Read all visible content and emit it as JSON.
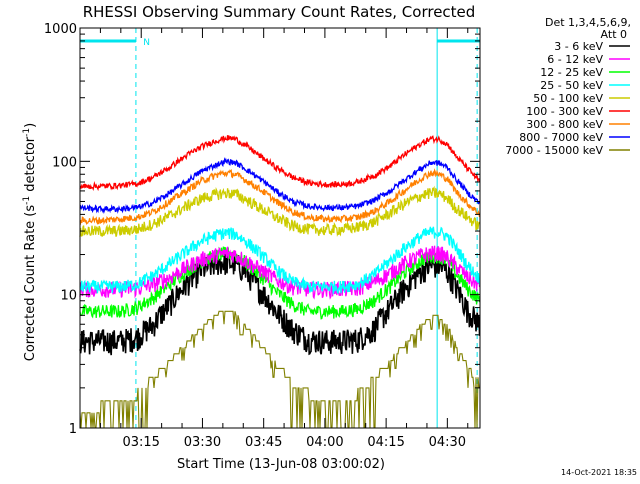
{
  "chart_data": {
    "type": "line",
    "title": "RHESSI Observing Summary Count Rates, Corrected",
    "xlabel": "Start Time (13-Jun-08 03:00:02)",
    "ylabel_main": "Corrected Count Rate (s",
    "ylabel_sup1": "-1",
    "ylabel_mid": " detector",
    "ylabel_sup2": "-1",
    "ylabel_end": ")",
    "yscale": "log",
    "xlim": [
      0,
      98
    ],
    "ylim": [
      1,
      1000
    ],
    "x_unit": "minutes after 03:00",
    "x_ticks": [
      {
        "x": 15,
        "label": "03:15"
      },
      {
        "x": 30,
        "label": "03:30"
      },
      {
        "x": 45,
        "label": "03:45"
      },
      {
        "x": 60,
        "label": "04:00"
      },
      {
        "x": 75,
        "label": "04:15"
      },
      {
        "x": 90,
        "label": "04:30"
      }
    ],
    "y_ticks": [
      {
        "y": 1,
        "label": "1"
      },
      {
        "y": 10,
        "label": "10"
      },
      {
        "y": 100,
        "label": "100"
      },
      {
        "y": 1000,
        "label": "1000"
      }
    ],
    "legend_header": [
      "Det 1,3,4,5,6,9,",
      "Att 0"
    ],
    "legend_position": "right",
    "timestamp": "14-Oct-2021 18:35",
    "annotations": [
      {
        "label": "N",
        "x": 15.5,
        "y": 800
      }
    ],
    "markers": {
      "night_bar": [
        0,
        13.7
      ],
      "saa_bar": [
        87.5,
        98
      ],
      "solid_lines": [
        0,
        87.5
      ],
      "dashed_lines": [
        13.7,
        97.3
      ]
    },
    "x": [
      0,
      5,
      10,
      14,
      18,
      22,
      26,
      30,
      34,
      36,
      38,
      40,
      44,
      48,
      52,
      56,
      60,
      64,
      68,
      72,
      76,
      80,
      84,
      86,
      88,
      90,
      92,
      95,
      98
    ],
    "series": [
      {
        "name": "3 - 6 keV",
        "color": "#000000",
        "values": [
          4.5,
          4.5,
          4.5,
          4.8,
          6,
          8.5,
          12,
          15.5,
          17.5,
          17.5,
          17,
          15.5,
          11,
          7.5,
          5.5,
          4.6,
          4.5,
          4.5,
          4.6,
          5.5,
          8,
          11.5,
          15.5,
          16.5,
          16.5,
          15,
          11.5,
          7.5,
          6
        ]
      },
      {
        "name": "6 - 12 keV",
        "color": "#ff00ff",
        "values": [
          11,
          11,
          11,
          11.2,
          12,
          13.5,
          16,
          18.5,
          20,
          20.5,
          20,
          18.5,
          15.5,
          13,
          11.5,
          11,
          11,
          11,
          11.2,
          12.5,
          14.5,
          17.5,
          20,
          20.5,
          20.5,
          19,
          16.5,
          13.5,
          11.5
        ]
      },
      {
        "name": "12 - 25 keV",
        "color": "#00ff00",
        "values": [
          7.5,
          7.5,
          7.5,
          8,
          9.5,
          12,
          15,
          18,
          20,
          20.5,
          20,
          18,
          14,
          10.5,
          8.5,
          7.5,
          7.5,
          7.5,
          7.8,
          9,
          11.5,
          15,
          18.5,
          19.5,
          19.5,
          18,
          14.5,
          11,
          9
        ]
      },
      {
        "name": "25 - 50 keV",
        "color": "#00ffff",
        "values": [
          11.5,
          11.5,
          11.5,
          12,
          14,
          17,
          21,
          25.5,
          28.5,
          29,
          28.5,
          26,
          20.5,
          15.5,
          12.5,
          11.5,
          11.5,
          11.5,
          12,
          14,
          18,
          23,
          28,
          29.5,
          29.5,
          27.5,
          22.5,
          16.5,
          13
        ]
      },
      {
        "name": "50 - 100 keV",
        "color": "#cccc00",
        "values": [
          30,
          30,
          30,
          31,
          34,
          39,
          46,
          53,
          57,
          58,
          57,
          53,
          45,
          38,
          33,
          31,
          30.5,
          31,
          32,
          35,
          41,
          49,
          56,
          58,
          57,
          53,
          45,
          38,
          32
        ]
      },
      {
        "name": "100 - 300 keV",
        "color": "#ff0000",
        "values": [
          65,
          65,
          66,
          68,
          76,
          90,
          110,
          130,
          145,
          150,
          148,
          135,
          110,
          90,
          76,
          69,
          67,
          67,
          70,
          78,
          92,
          115,
          138,
          148,
          146,
          135,
          110,
          88,
          70
        ]
      },
      {
        "name": "300 - 800 keV",
        "color": "#ff8000",
        "values": [
          36,
          36,
          37,
          38,
          42,
          50,
          60,
          72,
          80,
          82,
          80,
          74,
          62,
          50,
          42,
          38,
          37,
          37,
          38,
          42,
          50,
          62,
          76,
          82,
          80,
          74,
          60,
          48,
          40
        ]
      },
      {
        "name": "800 - 7000 keV",
        "color": "#0000ff",
        "values": [
          45,
          44,
          44,
          45,
          49,
          58,
          70,
          85,
          96,
          100,
          98,
          90,
          74,
          60,
          50,
          46,
          45,
          45,
          46,
          51,
          60,
          74,
          90,
          98,
          97,
          90,
          74,
          58,
          48
        ]
      },
      {
        "name": "7000 - 15000 keV",
        "color": "#808000",
        "values": [
          1.4,
          1.6,
          1.8,
          2,
          2.6,
          3.3,
          4.5,
          6,
          7.5,
          8,
          7.5,
          6.3,
          4.5,
          3.2,
          2.4,
          2,
          1.8,
          1.8,
          2,
          2.5,
          3.3,
          4.6,
          6.3,
          7,
          7,
          6,
          4.5,
          3,
          2.3
        ]
      }
    ]
  }
}
